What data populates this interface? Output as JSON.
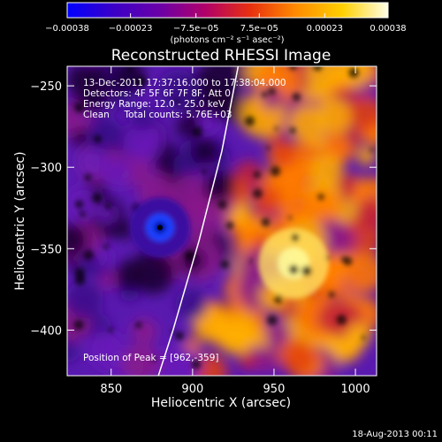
{
  "chart_data": {
    "type": "heatmap",
    "title": "Reconstructed RHESSI Image",
    "xlabel": "Heliocentric X (arcsec)",
    "ylabel": "Heliocentric Y (arcsec)",
    "xlim": [
      823,
      1013
    ],
    "ylim": [
      -428,
      -238
    ],
    "x_ticks": [
      850,
      900,
      950,
      1000
    ],
    "y_ticks": [
      -250,
      -300,
      -350,
      -400
    ],
    "x_tick_labels": [
      "850",
      "900",
      "950",
      "1000"
    ],
    "y_tick_labels": [
      "−250",
      "−300",
      "−350",
      "−400"
    ],
    "colorbar": {
      "range": [
        -0.00038,
        0.00038
      ],
      "ticks": [
        -0.00038,
        -0.00023,
        -7.5e-05,
        7.5e-05,
        0.00023,
        0.00038
      ],
      "tick_labels": [
        "−0.00038",
        "−0.00023",
        "−7.5e−05",
        "7.5e−05",
        "0.00023",
        "0.00038"
      ],
      "unit_label": "(photons cm⁻² s⁻¹ asec⁻²)"
    },
    "annotations": {
      "time_range": "13-Dec-2011 17:37:16.000 to 17:38:04.000",
      "detectors": "Detectors: 4F 5F 6F 7F 8F, Att 0",
      "energy_range": "Energy Range: 12.0 - 25.0 keV",
      "clean": "Clean     Total counts: 5.76E+03",
      "peak_position": "Position of Peak = [962,-359]"
    },
    "features": [
      {
        "kind": "peak",
        "x": 962,
        "y": -359
      },
      {
        "kind": "minimum",
        "x": 880,
        "y": -337
      }
    ],
    "limb": [
      [
        928,
        -238
      ],
      [
        918,
        -290
      ],
      [
        904,
        -345
      ],
      [
        888,
        -400
      ],
      [
        879,
        -428
      ]
    ],
    "footer": "18-Aug-2013 00:11",
    "grid": false
  },
  "colors": {
    "background": "#000000",
    "limb": "#ffffff",
    "colorbar_stops": [
      "#0000ff",
      "#3a00c8",
      "#6a00a8",
      "#b0006a",
      "#e83010",
      "#ff8c00",
      "#ffd000",
      "#ffffe8"
    ]
  }
}
